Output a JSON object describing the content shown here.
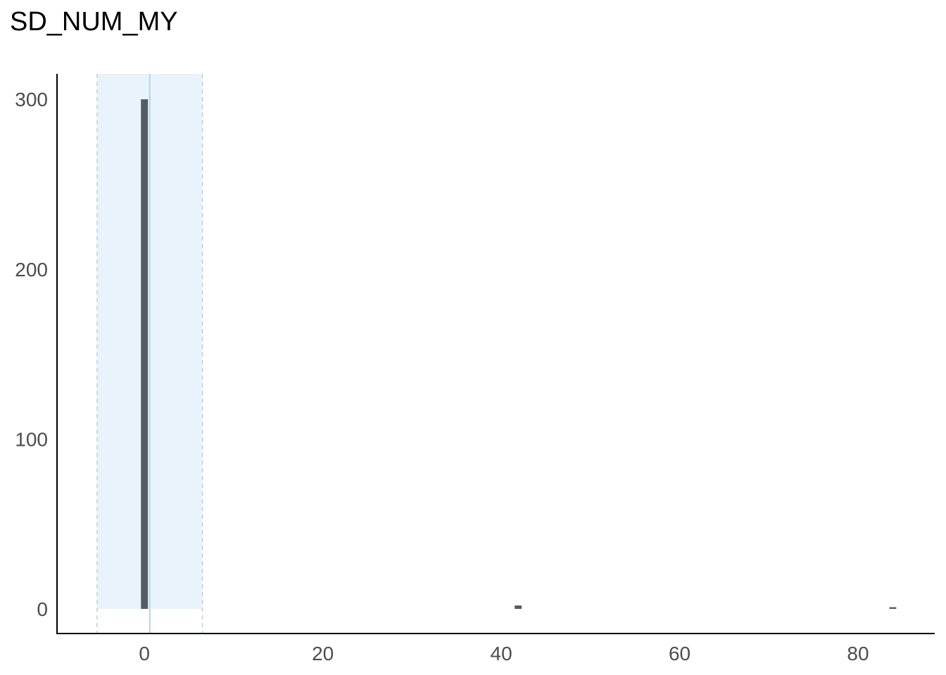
{
  "chart_data": {
    "type": "bar",
    "title": "SD_NUM_MY",
    "xlabel": "",
    "ylabel": "",
    "xlim": [
      -9.8,
      88.6
    ],
    "ylim": [
      -14.5,
      315
    ],
    "x_ticks": [
      0,
      20,
      40,
      60,
      80
    ],
    "y_ticks": [
      0,
      100,
      200,
      300
    ],
    "bin_width": 0.78,
    "bins": [
      {
        "x": 0,
        "count": 300
      },
      {
        "x": 41.9,
        "count": 2
      },
      {
        "x": 83.9,
        "count": 1
      }
    ],
    "reference_band": {
      "low": -5.3,
      "high": 6.5
    },
    "reference_line": {
      "x": 0.6
    },
    "colors": {
      "bar": "#535c63",
      "band_fill": "#e9f3fc",
      "band_edge": "#b5d4ec",
      "center_line": "#b5d4ec",
      "axis": "#000000",
      "tick_label": "#4d4d4d"
    },
    "grid": false
  }
}
